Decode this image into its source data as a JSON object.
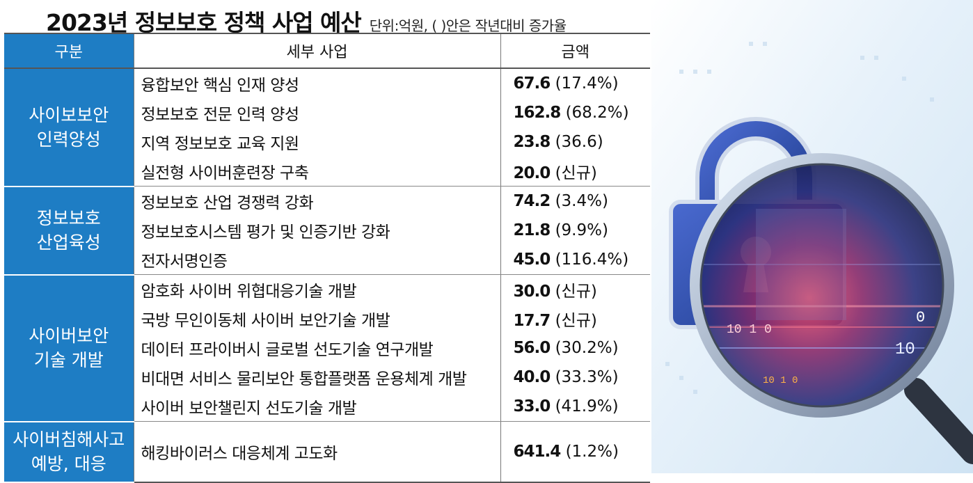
{
  "header": {
    "title": "2023년 정보보호 정책 사업 예산",
    "subtitle": "단위:억원, ( )안은 작년대비 증가율"
  },
  "table": {
    "columns": [
      "구분",
      "세부 사업",
      "금액"
    ],
    "groups": [
      {
        "category": "사이보보안\n인력양성",
        "rows": [
          {
            "item": "융합보안 핵심 인재 양성",
            "value": "67.6",
            "change": "(17.4%)"
          },
          {
            "item": "정보보호 전문 인력 양성",
            "value": "162.8",
            "change": "(68.2%)"
          },
          {
            "item": "지역 정보보호 교육 지원",
            "value": "23.8",
            "change": "(36.6)"
          },
          {
            "item": "실전형 사이버훈련장 구축",
            "value": "20.0",
            "change": "(신규)"
          }
        ]
      },
      {
        "category": "정보보호\n산업육성",
        "rows": [
          {
            "item": "정보보호 산업 경쟁력 강화",
            "value": "74.2",
            "change": "(3.4%)"
          },
          {
            "item": "정보보호시스템 평가 및 인증기반 강화",
            "value": "21.8",
            "change": "(9.9%)"
          },
          {
            "item": "전자서명인증",
            "value": "45.0",
            "change": "(116.4%)"
          }
        ]
      },
      {
        "category": "사이버보안\n기술 개발",
        "rows": [
          {
            "item": "암호화 사이버 위협대응기술 개발",
            "value": "30.0",
            "change": "(신규)"
          },
          {
            "item": "국방 무인이동체 사이버 보안기술 개발",
            "value": "17.7",
            "change": "(신규)"
          },
          {
            "item": "데이터 프라이버시 글로벌 선도기술 연구개발",
            "value": "56.0",
            "change": "(30.2%)"
          },
          {
            "item": "비대면 서비스 물리보안 통합플랫폼 운용체계 개발",
            "value": "40.0",
            "change": "(33.3%)"
          },
          {
            "item": "사이버 보안챌린지 선도기술 개발",
            "value": "33.0",
            "change": "(41.9%)"
          }
        ]
      },
      {
        "category": "사이버침해사고\n예방, 대응",
        "rows": [
          {
            "item": "해킹바이러스 대응체계 고도화",
            "value": "641.4",
            "change": "(1.2%)"
          }
        ]
      }
    ]
  },
  "illustration": {
    "icons": [
      "padlock-icon",
      "magnifier-icon"
    ],
    "binary_text": [
      "10 1 0",
      "10 1 0",
      "0",
      "10"
    ],
    "colors": {
      "category_bg": "#1e7dc4",
      "lock_blue": "#2c4aa0",
      "lens_red": "#c0304a"
    }
  }
}
